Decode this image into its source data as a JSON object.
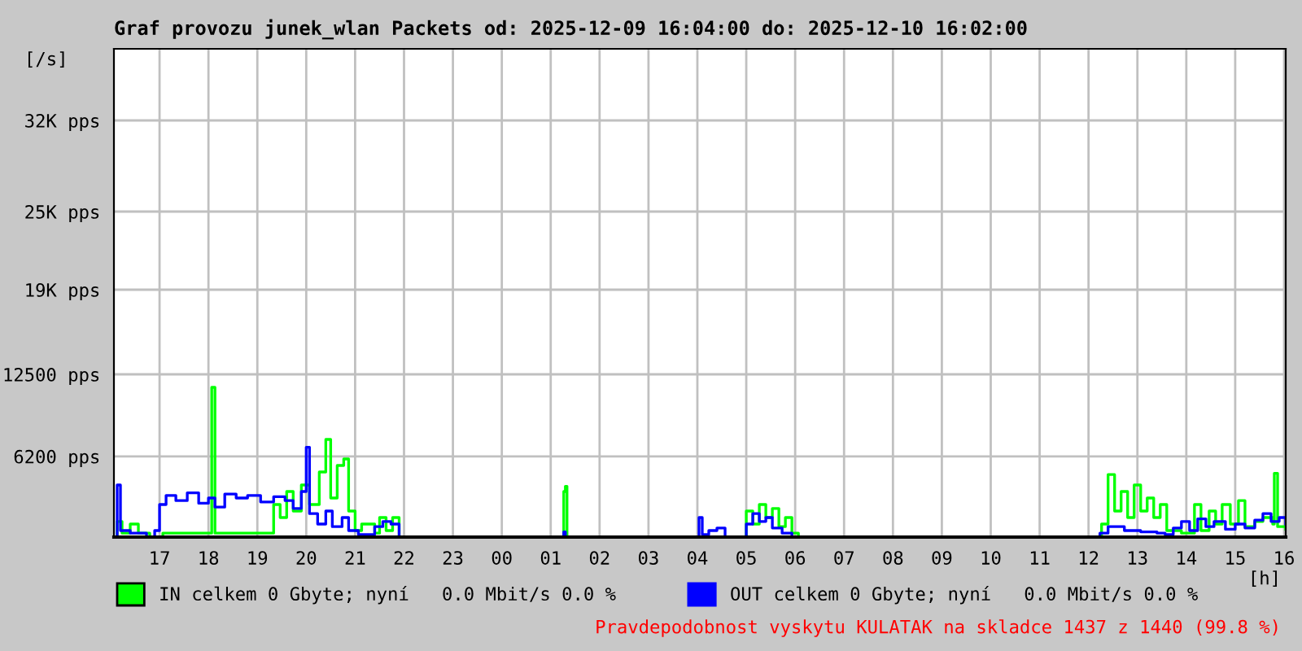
{
  "chart_data": {
    "type": "step",
    "title": "Graf provozu junek_wlan Packets od: 2025-12-09 16:04:00 do: 2025-12-10 16:02:00",
    "ylabel": "[/s]",
    "xlabel": "[h]",
    "xlim": [
      "2025-12-09T16:04",
      "2025-12-10T16:02"
    ],
    "ylim": [
      0,
      37500
    ],
    "xticks": [
      {
        "value": "2025-12-09T17:00",
        "label": "17"
      },
      {
        "value": "2025-12-09T18:00",
        "label": "18"
      },
      {
        "value": "2025-12-09T19:00",
        "label": "19"
      },
      {
        "value": "2025-12-09T20:00",
        "label": "20"
      },
      {
        "value": "2025-12-09T21:00",
        "label": "21"
      },
      {
        "value": "2025-12-09T22:00",
        "label": "22"
      },
      {
        "value": "2025-12-09T23:00",
        "label": "23"
      },
      {
        "value": "2025-12-10T00:00",
        "label": "00"
      },
      {
        "value": "2025-12-10T01:00",
        "label": "01"
      },
      {
        "value": "2025-12-10T02:00",
        "label": "02"
      },
      {
        "value": "2025-12-10T03:00",
        "label": "03"
      },
      {
        "value": "2025-12-10T04:00",
        "label": "04"
      },
      {
        "value": "2025-12-10T05:00",
        "label": "05"
      },
      {
        "value": "2025-12-10T06:00",
        "label": "06"
      },
      {
        "value": "2025-12-10T07:00",
        "label": "07"
      },
      {
        "value": "2025-12-10T08:00",
        "label": "08"
      },
      {
        "value": "2025-12-10T09:00",
        "label": "09"
      },
      {
        "value": "2025-12-10T10:00",
        "label": "10"
      },
      {
        "value": "2025-12-10T11:00",
        "label": "11"
      },
      {
        "value": "2025-12-10T12:00",
        "label": "12"
      },
      {
        "value": "2025-12-10T13:00",
        "label": "13"
      },
      {
        "value": "2025-12-10T14:00",
        "label": "14"
      },
      {
        "value": "2025-12-10T15:00",
        "label": "15"
      },
      {
        "value": "2025-12-10T16:00",
        "label": "16"
      }
    ],
    "yticks": [
      {
        "value": 6200,
        "label": "6200 pps"
      },
      {
        "value": 12500,
        "label": "12500 pps"
      },
      {
        "value": 19000,
        "label": "19K pps"
      },
      {
        "value": 25000,
        "label": "25K pps"
      },
      {
        "value": 32000,
        "label": "32K pps"
      }
    ],
    "grid": true,
    "legend": "bottom",
    "line_style": "solid",
    "marker": "none",
    "series": [
      {
        "name": "IN celkem 0 Gbyte; nyní   0.0 Mbit/s 0.0 %",
        "color": "#00ff00",
        "x": [
          "2025-12-09T16:04",
          "2025-12-09T16:08",
          "2025-12-09T16:14",
          "2025-12-09T16:24",
          "2025-12-09T16:34",
          "2025-12-09T16:48",
          "2025-12-09T17:04",
          "2025-12-09T18:00",
          "2025-12-09T18:04",
          "2025-12-09T18:08",
          "2025-12-09T19:14",
          "2025-12-09T19:20",
          "2025-12-09T19:28",
          "2025-12-09T19:36",
          "2025-12-09T19:44",
          "2025-12-09T19:54",
          "2025-12-09T20:04",
          "2025-12-09T20:16",
          "2025-12-09T20:24",
          "2025-12-09T20:30",
          "2025-12-09T20:38",
          "2025-12-09T20:46",
          "2025-12-09T20:52",
          "2025-12-09T21:00",
          "2025-12-09T21:08",
          "2025-12-09T21:24",
          "2025-12-09T21:30",
          "2025-12-09T21:38",
          "2025-12-09T21:46",
          "2025-12-09T21:54",
          "2025-12-10T01:14",
          "2025-12-10T01:16",
          "2025-12-10T01:18",
          "2025-12-10T01:20",
          "2025-12-10T04:54",
          "2025-12-10T05:00",
          "2025-12-10T05:08",
          "2025-12-10T05:16",
          "2025-12-10T05:24",
          "2025-12-10T05:32",
          "2025-12-10T05:40",
          "2025-12-10T05:48",
          "2025-12-10T05:56",
          "2025-12-10T06:04",
          "2025-12-10T12:04",
          "2025-12-10T12:16",
          "2025-12-10T12:24",
          "2025-12-10T12:32",
          "2025-12-10T12:40",
          "2025-12-10T12:48",
          "2025-12-10T12:56",
          "2025-12-10T13:04",
          "2025-12-10T13:12",
          "2025-12-10T13:20",
          "2025-12-10T13:28",
          "2025-12-10T13:36",
          "2025-12-10T13:54",
          "2025-12-10T14:10",
          "2025-12-10T14:18",
          "2025-12-10T14:28",
          "2025-12-10T14:36",
          "2025-12-10T14:44",
          "2025-12-10T14:54",
          "2025-12-10T15:04",
          "2025-12-10T15:12",
          "2025-12-10T15:24",
          "2025-12-10T15:34",
          "2025-12-10T15:46",
          "2025-12-10T15:48",
          "2025-12-10T15:52",
          "2025-12-10T16:02"
        ],
        "values": [
          0,
          1200,
          300,
          1000,
          300,
          0,
          300,
          300,
          11500,
          300,
          300,
          2500,
          1500,
          3500,
          2000,
          4000,
          2500,
          5000,
          7500,
          3000,
          5500,
          6000,
          2000,
          500,
          1000,
          300,
          1500,
          500,
          1500,
          0,
          0,
          3500,
          3900,
          0,
          0,
          2000,
          1000,
          2500,
          1500,
          2200,
          800,
          1500,
          300,
          0,
          0,
          1000,
          4800,
          2000,
          3500,
          1500,
          4000,
          2000,
          3000,
          1500,
          2500,
          500,
          300,
          2500,
          500,
          2000,
          1000,
          2500,
          1000,
          2800,
          800,
          1200,
          1500,
          1000,
          4900,
          800,
          600
        ]
      },
      {
        "name": "OUT celkem 0 Gbyte; nyní   0.0 Mbit/s 0.0 %",
        "color": "#0000ff",
        "x": [
          "2025-12-09T16:04",
          "2025-12-09T16:08",
          "2025-12-09T16:12",
          "2025-12-09T16:24",
          "2025-12-09T16:44",
          "2025-12-09T16:54",
          "2025-12-09T17:00",
          "2025-12-09T17:08",
          "2025-12-09T17:20",
          "2025-12-09T17:34",
          "2025-12-09T17:48",
          "2025-12-09T18:00",
          "2025-12-09T18:08",
          "2025-12-09T18:20",
          "2025-12-09T18:34",
          "2025-12-09T18:48",
          "2025-12-09T19:04",
          "2025-12-09T19:20",
          "2025-12-09T19:34",
          "2025-12-09T19:44",
          "2025-12-09T19:54",
          "2025-12-09T20:00",
          "2025-12-09T20:04",
          "2025-12-09T20:14",
          "2025-12-09T20:24",
          "2025-12-09T20:32",
          "2025-12-09T20:44",
          "2025-12-09T20:52",
          "2025-12-09T21:04",
          "2025-12-09T21:24",
          "2025-12-09T21:34",
          "2025-12-09T21:44",
          "2025-12-09T21:54",
          "2025-12-10T01:14",
          "2025-12-10T01:16",
          "2025-12-10T01:18",
          "2025-12-10T04:00",
          "2025-12-10T04:02",
          "2025-12-10T04:06",
          "2025-12-10T04:14",
          "2025-12-10T04:24",
          "2025-12-10T04:34",
          "2025-12-10T04:54",
          "2025-12-10T05:00",
          "2025-12-10T05:08",
          "2025-12-10T05:16",
          "2025-12-10T05:24",
          "2025-12-10T05:32",
          "2025-12-10T05:44",
          "2025-12-10T05:56",
          "2025-12-10T12:04",
          "2025-12-10T12:14",
          "2025-12-10T12:24",
          "2025-12-10T12:44",
          "2025-12-10T13:04",
          "2025-12-10T13:24",
          "2025-12-10T13:34",
          "2025-12-10T13:44",
          "2025-12-10T13:54",
          "2025-12-10T14:04",
          "2025-12-10T14:14",
          "2025-12-10T14:24",
          "2025-12-10T14:34",
          "2025-12-10T14:48",
          "2025-12-10T15:00",
          "2025-12-10T15:12",
          "2025-12-10T15:24",
          "2025-12-10T15:34",
          "2025-12-10T15:44",
          "2025-12-10T15:54",
          "2025-12-10T16:02"
        ],
        "values": [
          0,
          4000,
          500,
          300,
          0,
          500,
          2500,
          3200,
          2800,
          3400,
          2600,
          3000,
          2300,
          3300,
          3000,
          3200,
          2700,
          3100,
          2800,
          2200,
          3500,
          6900,
          1800,
          1000,
          2000,
          800,
          1500,
          500,
          200,
          800,
          1200,
          1000,
          0,
          0,
          400,
          0,
          0,
          1500,
          200,
          500,
          700,
          0,
          0,
          1000,
          1800,
          1200,
          1500,
          700,
          300,
          0,
          0,
          300,
          800,
          500,
          400,
          300,
          200,
          700,
          1200,
          500,
          1400,
          800,
          1200,
          600,
          1000,
          700,
          1300,
          1800,
          1200,
          1500,
          1000
        ]
      }
    ],
    "annotations": [
      "Pravdepodobnost vyskytu KULATAK na skladce 1437 z 1440 (99.8 %)"
    ]
  }
}
